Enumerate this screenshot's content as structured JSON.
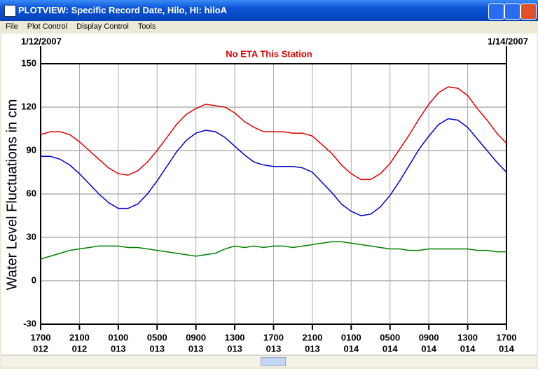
{
  "window": {
    "title": "PLOTVIEW: Specific Record Date, Hilo, HI: hiloA",
    "menu": [
      "File",
      "Plot Control",
      "Display Control",
      "Tools"
    ]
  },
  "chart_data": {
    "type": "line",
    "start_date": "1/12/2007",
    "end_date": "1/14/2007",
    "annotation": "No ETA This Station",
    "y_label": "Water Level Fluctuations in cm",
    "x": [
      0,
      1,
      2,
      3,
      4,
      5,
      6,
      7,
      8,
      9,
      10,
      11,
      12,
      13,
      14,
      15,
      16,
      17,
      18,
      19,
      20,
      21,
      22,
      23,
      24,
      25,
      26,
      27,
      28,
      29,
      30,
      31,
      32,
      33,
      34,
      35,
      36,
      37,
      38,
      39,
      40,
      41,
      42,
      43,
      44,
      45,
      46,
      47,
      48
    ],
    "xlim": [
      0,
      48
    ],
    "xticks": [
      {
        "value": 0,
        "label": "1700",
        "day": "012"
      },
      {
        "value": 4,
        "label": "2100",
        "day": "012"
      },
      {
        "value": 8,
        "label": "0100",
        "day": "013"
      },
      {
        "value": 12,
        "label": "0500",
        "day": "013"
      },
      {
        "value": 16,
        "label": "0900",
        "day": "013"
      },
      {
        "value": 20,
        "label": "1300",
        "day": "013"
      },
      {
        "value": 24,
        "label": "1700",
        "day": "013"
      },
      {
        "value": 28,
        "label": "2100",
        "day": "013"
      },
      {
        "value": 32,
        "label": "0100",
        "day": "014"
      },
      {
        "value": 36,
        "label": "0500",
        "day": "014"
      },
      {
        "value": 40,
        "label": "0900",
        "day": "014"
      },
      {
        "value": 44,
        "label": "1300",
        "day": "014"
      },
      {
        "value": 48,
        "label": "1700",
        "day": "014"
      }
    ],
    "ylim": [
      -30,
      150
    ],
    "yticks": [
      -30,
      0,
      30,
      60,
      90,
      120,
      150
    ],
    "grid": true,
    "series": [
      {
        "color": "#e00000",
        "values": [
          101,
          103,
          103,
          101,
          96,
          90,
          84,
          78,
          74,
          73,
          76,
          82,
          90,
          99,
          108,
          115,
          119,
          122,
          121,
          120,
          116,
          110,
          106,
          103,
          103,
          103,
          102,
          102,
          100,
          94,
          88,
          80,
          74,
          70,
          70,
          74,
          81,
          91,
          101,
          112,
          122,
          130,
          134,
          133,
          128,
          119,
          111,
          102,
          95
        ]
      },
      {
        "color": "#0000cc",
        "values": [
          86,
          86,
          84,
          80,
          74,
          67,
          60,
          54,
          50,
          50,
          53,
          60,
          69,
          79,
          89,
          97,
          102,
          104,
          103,
          99,
          93,
          87,
          82,
          80,
          79,
          79,
          79,
          78,
          75,
          68,
          61,
          53,
          48,
          45,
          46,
          51,
          59,
          69,
          80,
          91,
          100,
          108,
          112,
          111,
          106,
          98,
          90,
          82,
          75
        ]
      },
      {
        "color": "#008000",
        "values": [
          15,
          17,
          19,
          21,
          22,
          23,
          24,
          24,
          24,
          23,
          23,
          22,
          21,
          20,
          19,
          18,
          17,
          18,
          19,
          22,
          24,
          23,
          24,
          23,
          24,
          24,
          23,
          24,
          25,
          26,
          27,
          27,
          26,
          25,
          24,
          23,
          22,
          22,
          21,
          21,
          22,
          22,
          22,
          22,
          22,
          21,
          21,
          20,
          20
        ]
      }
    ]
  }
}
